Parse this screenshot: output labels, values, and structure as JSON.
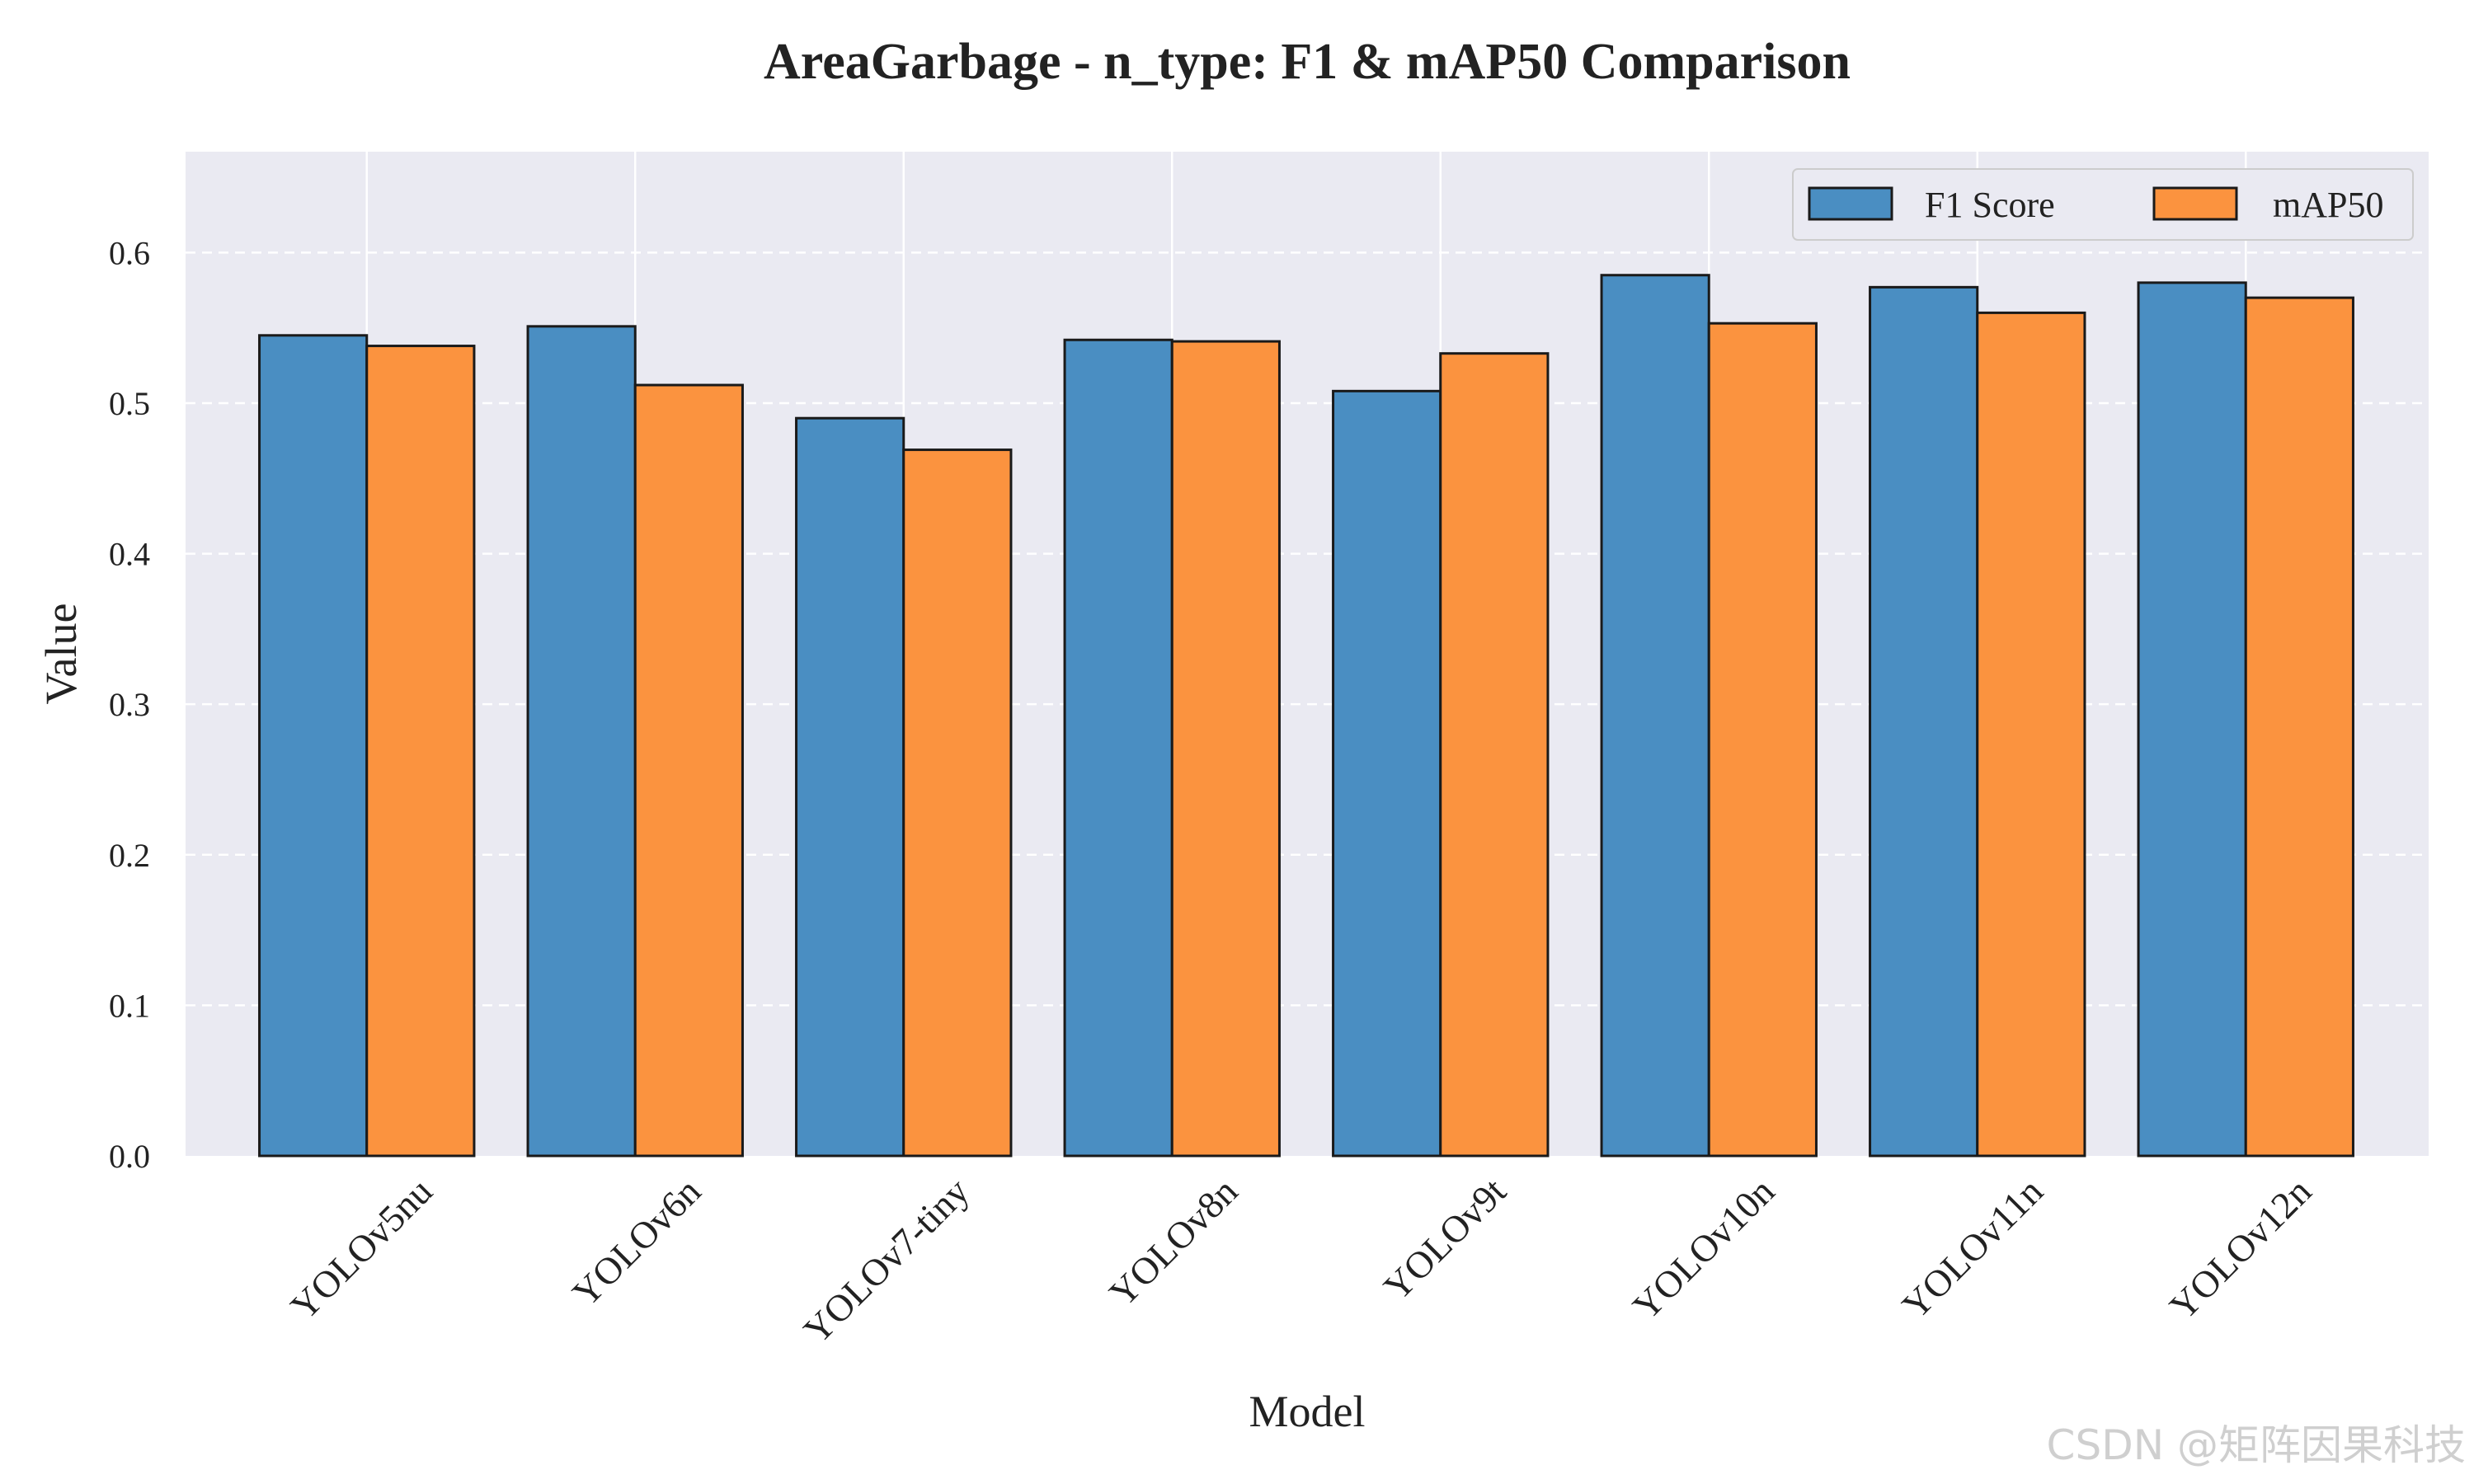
{
  "chart_data": {
    "type": "bar",
    "title": "AreaGarbage - n_type: F1 & mAP50 Comparison",
    "xlabel": "Model",
    "ylabel": "Value",
    "categories": [
      "YOLOv5nu",
      "YOLOv6n",
      "YOLOv7-tiny",
      "YOLOv8n",
      "YOLOv9t",
      "YOLOv10n",
      "YOLOv11n",
      "YOLOv12n"
    ],
    "series": [
      {
        "name": "F1 Score",
        "color": "#4a8ec2",
        "values": [
          0.545,
          0.551,
          0.49,
          0.542,
          0.508,
          0.585,
          0.577,
          0.58
        ]
      },
      {
        "name": "mAP50",
        "color": "#fb933f",
        "values": [
          0.538,
          0.512,
          0.469,
          0.541,
          0.533,
          0.553,
          0.56,
          0.57
        ]
      }
    ],
    "ylim": [
      0,
      0.667
    ],
    "yticks": [
      "0.0",
      "0.1",
      "0.2",
      "0.3",
      "0.4",
      "0.5",
      "0.6"
    ],
    "xtick_rotation_deg": 45,
    "grid": true,
    "grid_style": "dashed",
    "background_color": "#eaeaf2",
    "bar_edge_color": "#1a1a1a",
    "legend_position": "top-right"
  },
  "watermark": "CSDN @矩阵因果科技"
}
